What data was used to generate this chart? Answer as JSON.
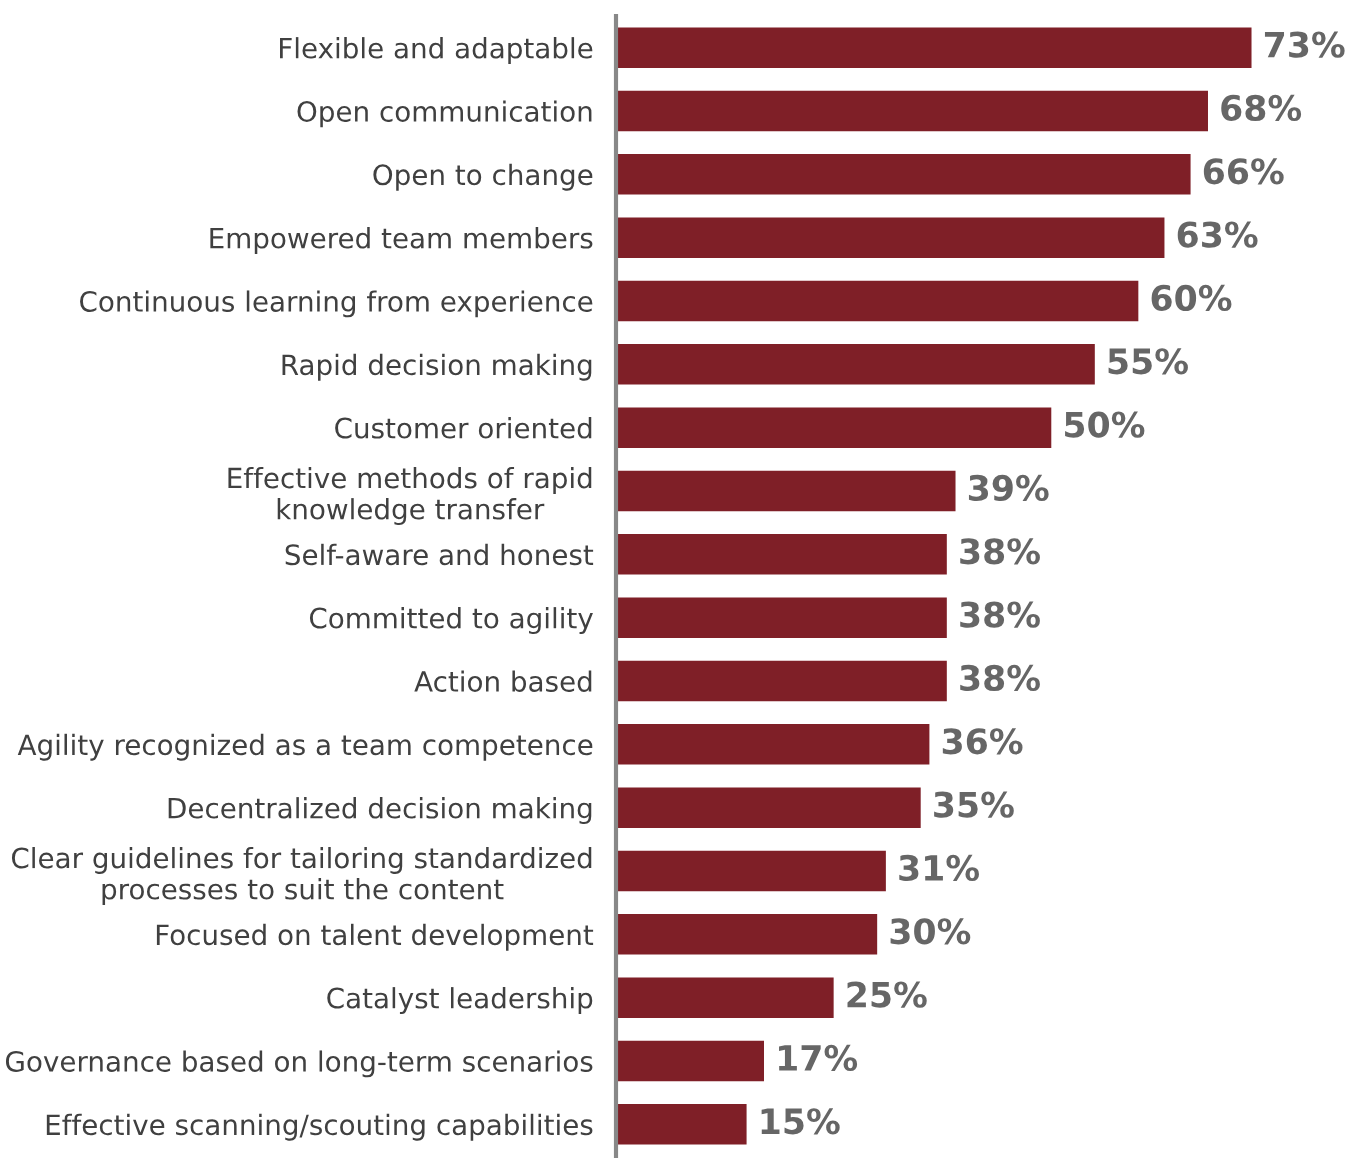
{
  "chart_data": {
    "type": "bar",
    "orientation": "horizontal",
    "categories": [
      "Flexible and adaptable",
      "Open communication",
      "Open to change",
      "Empowered team members",
      "Continuous learning from experience",
      "Rapid decision making",
      "Customer oriented",
      "Effective methods of rapid\nknowledge transfer",
      "Self-aware and honest",
      "Committed to agility",
      "Action based",
      "Agility recognized as a team competence",
      "Decentralized decision making",
      "Clear guidelines for tailoring standardized\nprocesses to suit the content",
      "Focused on talent development",
      "Catalyst leadership",
      "Governance based on long-term scenarios",
      "Effective scanning/scouting capabilities"
    ],
    "values": [
      73,
      68,
      66,
      63,
      60,
      55,
      50,
      39,
      38,
      38,
      38,
      36,
      35,
      31,
      30,
      25,
      17,
      15
    ],
    "value_labels": [
      "73%",
      "68%",
      "66%",
      "63%",
      "60%",
      "55%",
      "50%",
      "39%",
      "38%",
      "38%",
      "38%",
      "36%",
      "35%",
      "31%",
      "30%",
      "25%",
      "17%",
      "15%"
    ],
    "color": "#7f1f27",
    "tick_labels": "y",
    "grid": false,
    "legend": false
  }
}
